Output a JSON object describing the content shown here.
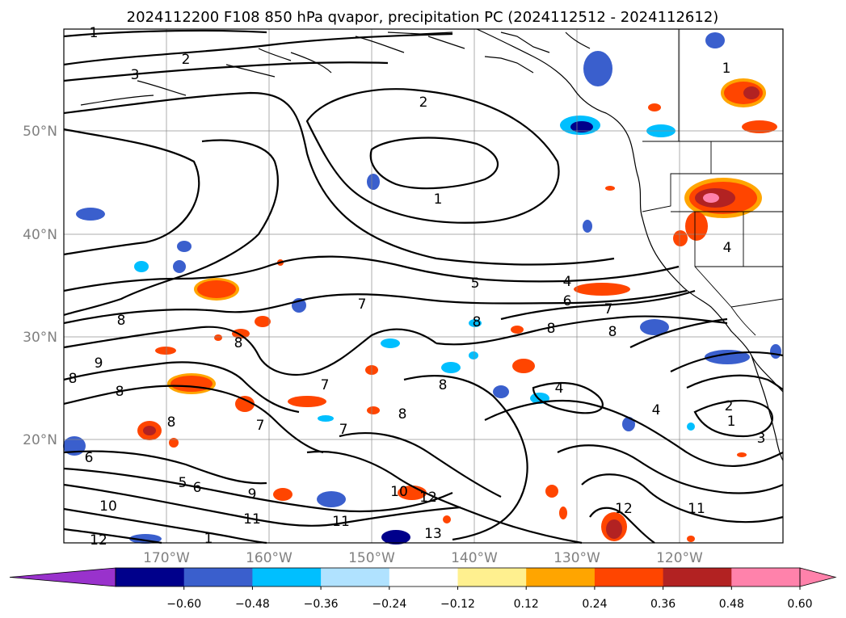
{
  "title": "2024112200 F108 850 hPa qvapor, precipitation PC (2024112512 - 2024112612)",
  "map": {
    "lat_labels": [
      "50°N",
      "40°N",
      "30°N",
      "20°N"
    ],
    "lon_labels": [
      "170°W",
      "160°W",
      "150°W",
      "140°W",
      "130°W",
      "120°W"
    ],
    "contour_labels": [
      "1",
      "2",
      "3",
      "2",
      "1",
      "1",
      "5",
      "4",
      "6",
      "7",
      "7",
      "7",
      "8",
      "8",
      "8",
      "8",
      "9",
      "8",
      "8",
      "8",
      "7",
      "7",
      "8",
      "5",
      "6",
      "9",
      "10",
      "11",
      "11",
      "10",
      "12",
      "13",
      "12",
      "11",
      "12",
      "1",
      "2",
      "1",
      "3",
      "4",
      "4",
      "4",
      "8",
      "8",
      "6"
    ]
  },
  "colorbar": {
    "tick_labels": [
      "−0.60",
      "−0.48",
      "−0.36",
      "−0.24",
      "−0.12",
      "0.12",
      "0.24",
      "0.36",
      "0.48",
      "0.60"
    ],
    "colors": {
      "under": "#9932cc",
      "bins": [
        "#00008b",
        "#3a5fcd",
        "#00bfff",
        "#b0e2ff",
        "#ffffff",
        "#fff08f",
        "#ffa500",
        "#ff4500",
        "#b22222",
        "#ff82ab"
      ],
      "over": "#ff82ab"
    }
  }
}
